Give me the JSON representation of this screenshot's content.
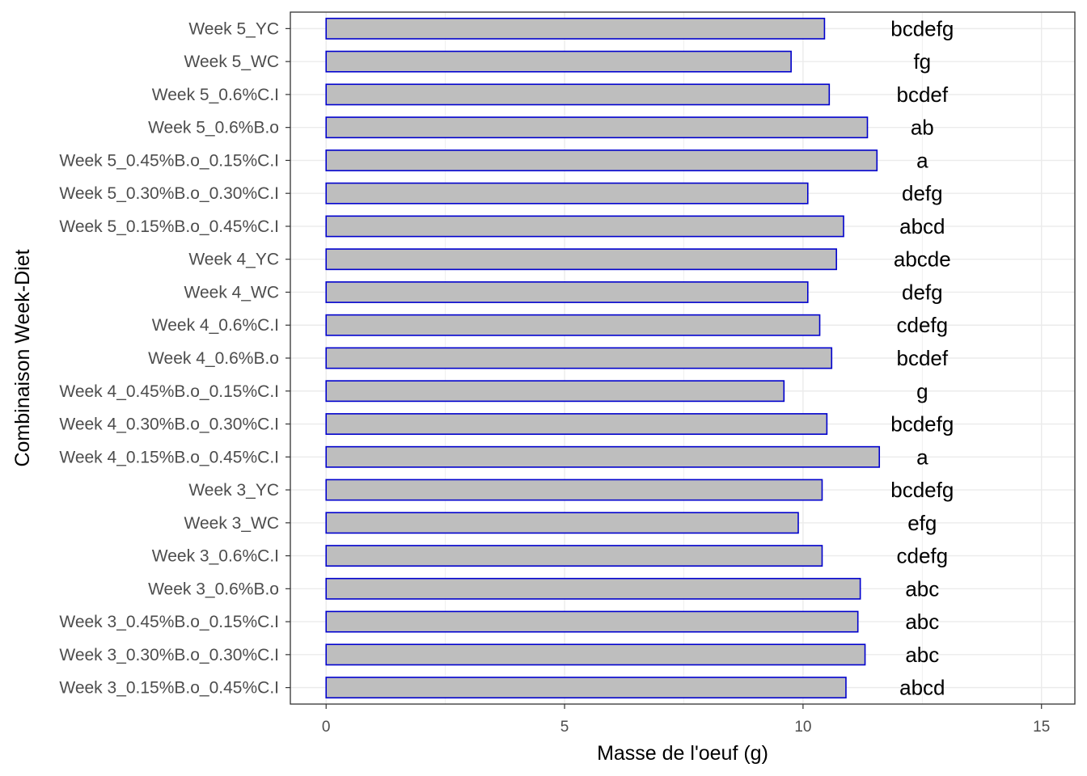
{
  "chart_data": {
    "type": "bar",
    "orientation": "horizontal",
    "xlabel": "Masse de l'oeuf (g)",
    "ylabel": "Combinaison Week-Diet",
    "xlim": [
      -0.75,
      15.7
    ],
    "xticks": [
      0,
      5,
      10,
      15
    ],
    "grid": true,
    "colors": {
      "bar_fill": "#bebebe",
      "bar_stroke": "#0000cd",
      "grid": "#ebebeb",
      "panel_border": "#333333"
    },
    "categories": [
      "Week 5_YC",
      "Week 5_WC",
      "Week 5_0.6%C.I",
      "Week 5_0.6%B.o",
      "Week 5_0.45%B.o_0.15%C.I",
      "Week 5_0.30%B.o_0.30%C.I",
      "Week 5_0.15%B.o_0.45%C.I",
      "Week 4_YC",
      "Week 4_WC",
      "Week 4_0.6%C.I",
      "Week 4_0.6%B.o",
      "Week 4_0.45%B.o_0.15%C.I",
      "Week 4_0.30%B.o_0.30%C.I",
      "Week 4_0.15%B.o_0.45%C.I",
      "Week 3_YC",
      "Week 3_WC",
      "Week 3_0.6%C.I",
      "Week 3_0.6%B.o",
      "Week 3_0.45%B.o_0.15%C.I",
      "Week 3_0.30%B.o_0.30%C.I",
      "Week 3_0.15%B.o_0.45%C.I"
    ],
    "values": [
      10.45,
      9.75,
      10.55,
      11.35,
      11.55,
      10.1,
      10.85,
      10.7,
      10.1,
      10.35,
      10.6,
      9.6,
      10.5,
      11.6,
      10.4,
      9.9,
      10.4,
      11.2,
      11.15,
      11.3,
      10.9
    ],
    "letters": [
      "bcdefg",
      "fg",
      "bcdef",
      "ab",
      "a",
      "defg",
      "abcd",
      "abcde",
      "defg",
      "cdefg",
      "bcdef",
      "g",
      "bcdefg",
      "a",
      "bcdefg",
      "efg",
      "cdefg",
      "abc",
      "abc",
      "abc",
      "abcd"
    ]
  }
}
